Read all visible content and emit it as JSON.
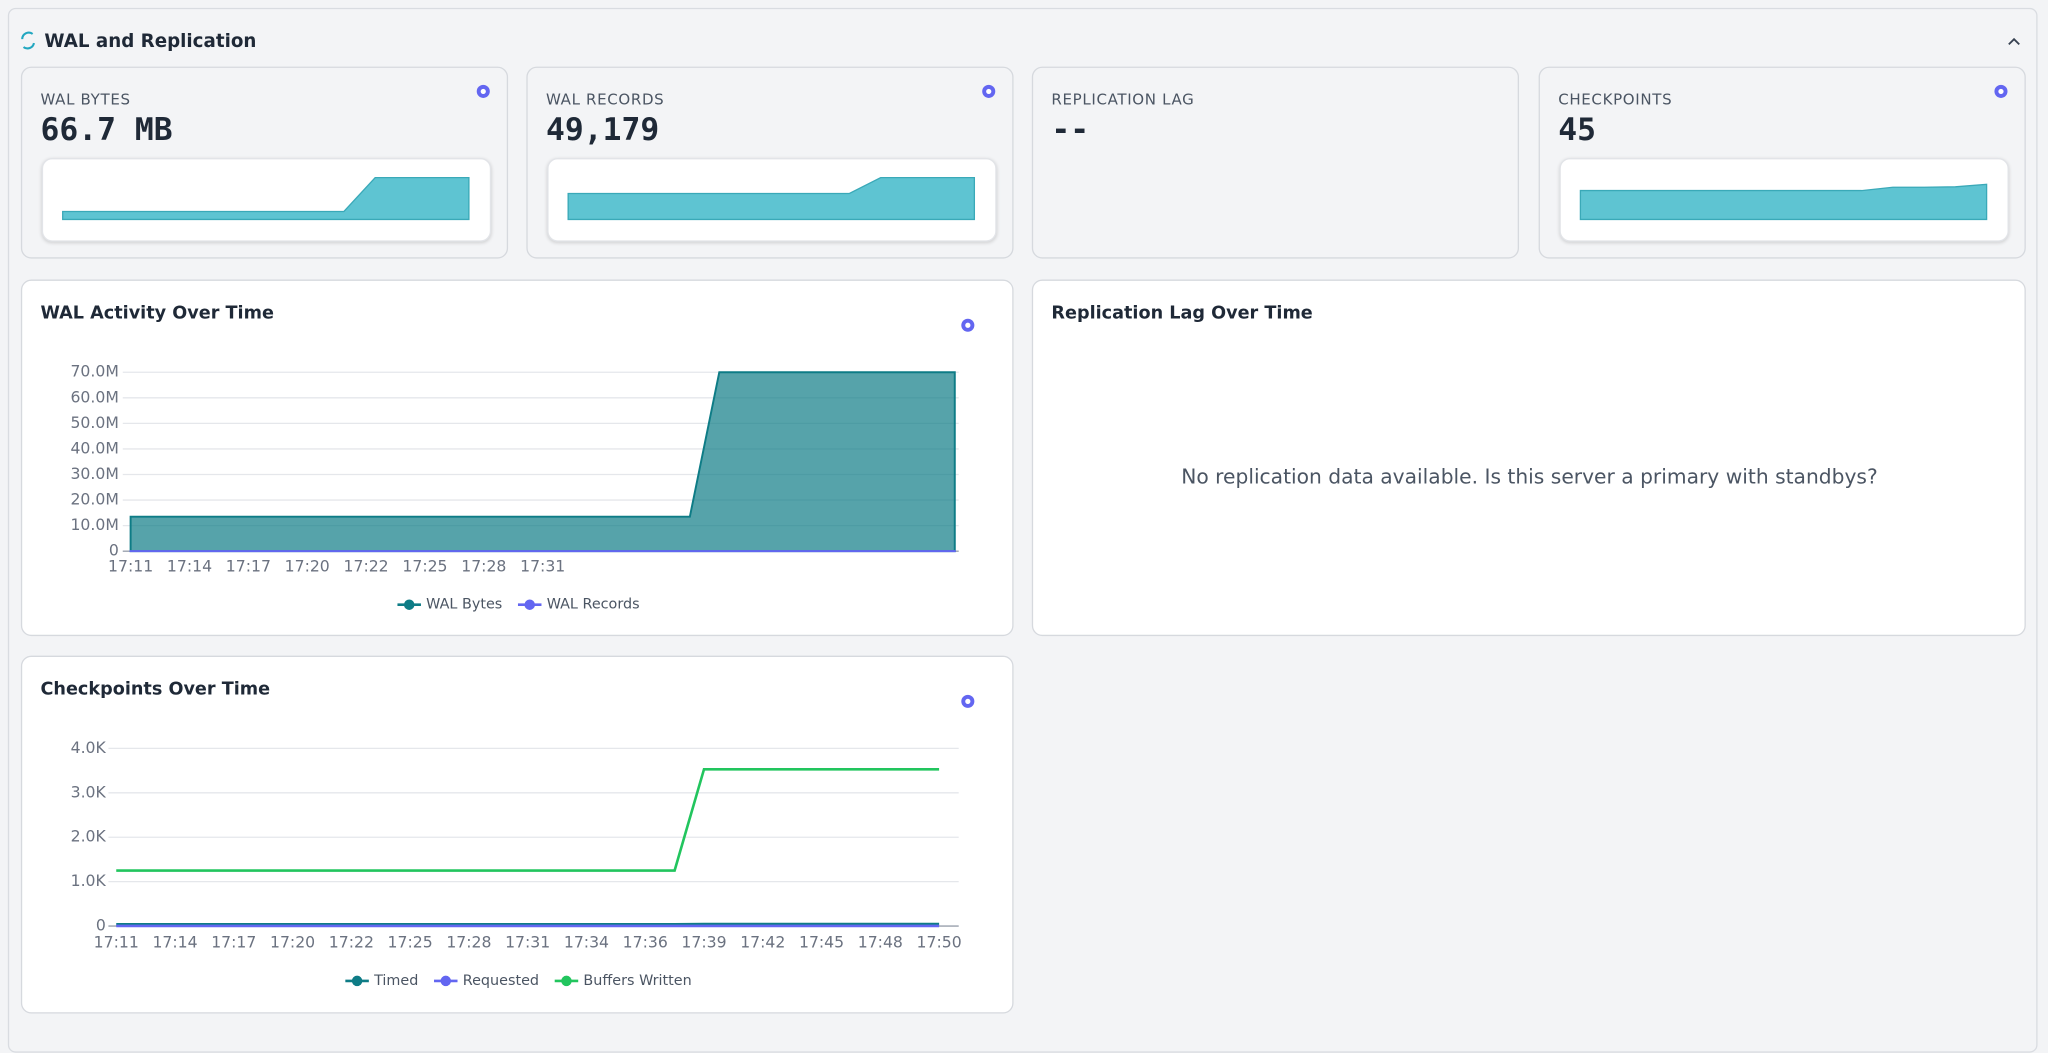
{
  "header": {
    "title": "WAL and Replication"
  },
  "stats": [
    {
      "label": "WAL BYTES",
      "value": "66.7 MB",
      "sparkline": {
        "values": [
          19,
          19,
          19,
          19,
          19,
          19,
          19,
          19,
          19,
          19,
          100,
          100,
          100,
          100
        ],
        "ylim": [
          0,
          100
        ]
      }
    },
    {
      "label": "WAL RECORDS",
      "value": "49,179",
      "sparkline": {
        "values": [
          62,
          62,
          62,
          62,
          62,
          62,
          62,
          62,
          62,
          62,
          100,
          100,
          100,
          100
        ],
        "ylim": [
          0,
          100
        ]
      }
    },
    {
      "label": "REPLICATION LAG",
      "value": "--"
    },
    {
      "label": "CHECKPOINTS",
      "value": "45",
      "sparkline": {
        "values": [
          69,
          69,
          69,
          69,
          69,
          69,
          69,
          69,
          69,
          69,
          77,
          77,
          78,
          84
        ],
        "ylim": [
          0,
          100
        ]
      }
    }
  ],
  "wal_chart": {
    "chart_data": {
      "type": "area",
      "title": "WAL Activity Over Time",
      "categories": [
        "17:11",
        null,
        "17:14",
        null,
        "17:17",
        null,
        "17:20",
        null,
        "17:22",
        null,
        "17:25",
        null,
        "17:28",
        null,
        "17:31",
        null,
        null,
        null,
        null,
        null,
        null,
        null,
        null,
        null,
        null,
        null,
        null,
        null,
        null
      ],
      "series": [
        {
          "name": "WAL Bytes",
          "color": "#0e7c86",
          "values": [
            13500000,
            13500000,
            13500000,
            13500000,
            13500000,
            13500000,
            13500000,
            13500000,
            13500000,
            13500000,
            13500000,
            13500000,
            13500000,
            13500000,
            13500000,
            13500000,
            13500000,
            13500000,
            13500000,
            13500000,
            70000000,
            70000000,
            70000000,
            70000000,
            70000000,
            70000000,
            70000000,
            70000000,
            70000000
          ]
        },
        {
          "name": "WAL Records",
          "color": "#6366f1",
          "values": [
            50000,
            50000,
            50000,
            50000,
            50000,
            50000,
            50000,
            50000,
            50000,
            50000,
            50000,
            50000,
            50000,
            50000,
            50000,
            50000,
            50000,
            50000,
            50000,
            50000,
            50000,
            50000,
            50000,
            50000,
            50000,
            50000,
            50000,
            50000,
            50000
          ]
        }
      ],
      "ylim": [
        0,
        70000000
      ],
      "yticks": [
        0,
        {
          "value": 10000000,
          "label": "10.0M"
        },
        {
          "value": 20000000,
          "label": "20.0M"
        },
        {
          "value": 30000000,
          "label": "30.0M"
        },
        {
          "value": 40000000,
          "label": "40.0M"
        },
        {
          "value": 50000000,
          "label": "50.0M"
        },
        {
          "value": 60000000,
          "label": "60.0M"
        },
        {
          "value": 70000000,
          "label": "70.0M"
        }
      ],
      "grid": true
    }
  },
  "replication_panel": {
    "title": "Replication Lag Over Time",
    "message": "No replication data available. Is this server a primary with standbys?"
  },
  "checkpoint_chart": {
    "chart_data": {
      "type": "line",
      "title": "Checkpoints Over Time",
      "categories": [
        "17:11",
        null,
        "17:14",
        null,
        "17:17",
        null,
        "17:20",
        null,
        "17:22",
        null,
        "17:25",
        null,
        "17:28",
        null,
        "17:31",
        null,
        "17:34",
        null,
        "17:36",
        null,
        "17:39",
        null,
        "17:42",
        null,
        "17:45",
        null,
        "17:48",
        null,
        "17:50"
      ],
      "series": [
        {
          "name": "Timed",
          "color": "#0e7c86",
          "values": [
            40,
            40,
            40,
            40,
            40,
            40,
            40,
            40,
            40,
            40,
            40,
            40,
            40,
            40,
            40,
            40,
            40,
            40,
            40,
            40,
            45,
            45,
            45,
            45,
            45,
            45,
            45,
            45,
            45
          ]
        },
        {
          "name": "Requested",
          "color": "#6366f1",
          "values": [
            2,
            2,
            2,
            2,
            2,
            2,
            2,
            2,
            2,
            2,
            2,
            2,
            2,
            2,
            2,
            2,
            2,
            2,
            2,
            2,
            2,
            2,
            2,
            2,
            2,
            2,
            2,
            2,
            2
          ]
        },
        {
          "name": "Buffers Written",
          "color": "#22c55e",
          "values": [
            1250,
            1250,
            1250,
            1250,
            1250,
            1250,
            1250,
            1250,
            1250,
            1250,
            1250,
            1250,
            1250,
            1250,
            1250,
            1250,
            1250,
            1250,
            1250,
            1250,
            3530,
            3530,
            3530,
            3530,
            3530,
            3530,
            3530,
            3530,
            3530
          ]
        }
      ],
      "ylim": [
        0,
        4000
      ],
      "yticks": [
        0,
        {
          "value": 1000,
          "label": "1.0K"
        },
        {
          "value": 2000,
          "label": "2.0K"
        },
        {
          "value": 3000,
          "label": "3.0K"
        },
        {
          "value": 4000,
          "label": "4.0K"
        }
      ],
      "grid": true
    }
  }
}
